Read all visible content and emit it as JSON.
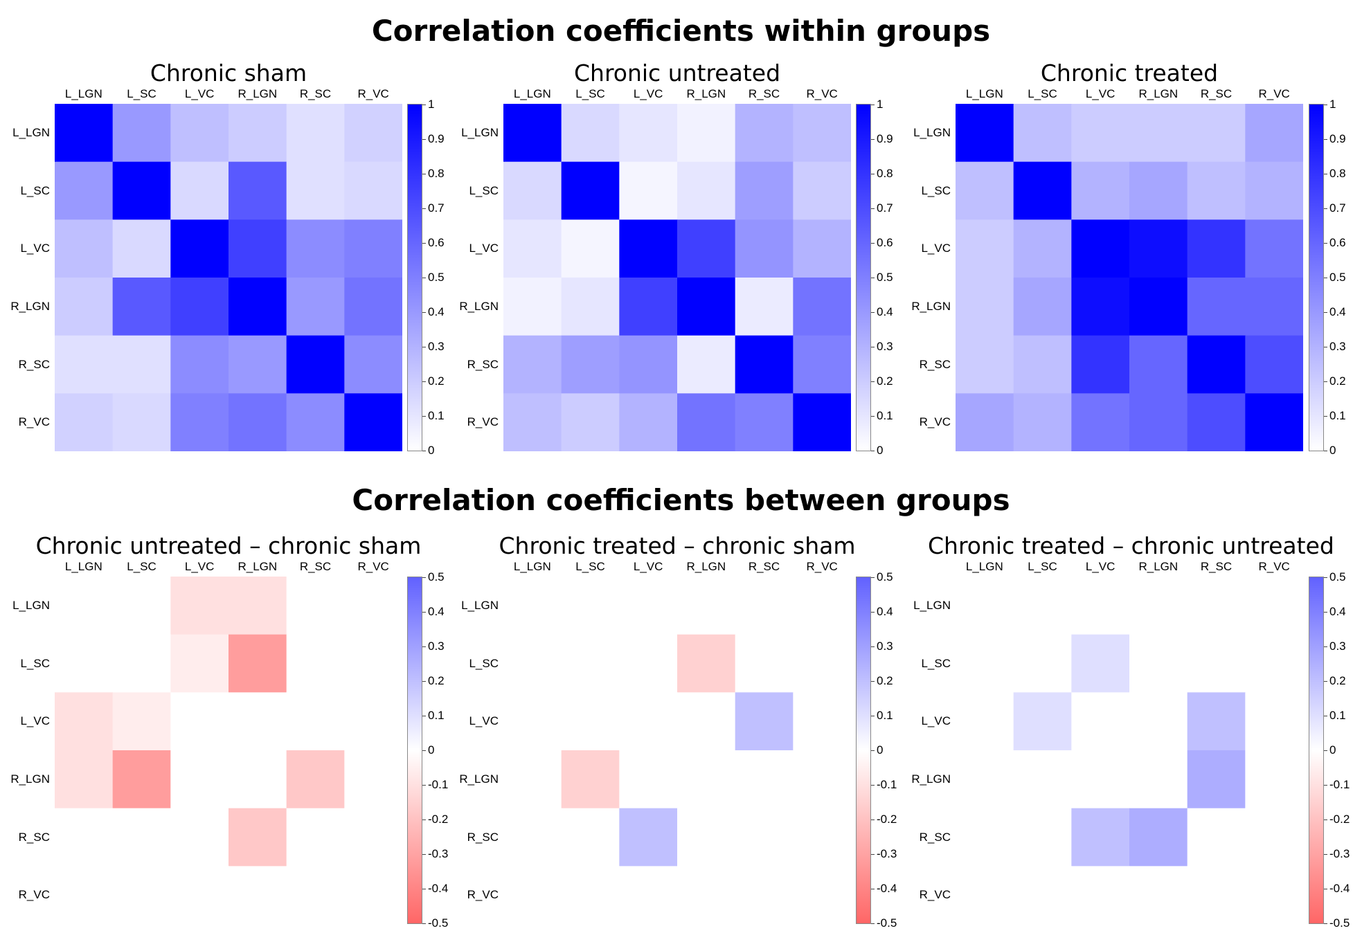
{
  "titles": {
    "within": "Correlation coefficients within groups",
    "between": "Correlation coefficients between groups"
  },
  "colors": {
    "positive": "#0000ff",
    "negative": "#ff4040",
    "neutral": "#ffffff"
  },
  "chart_data": [
    {
      "type": "heatmap",
      "title": "Chronic sham",
      "row_labels": [
        "L_LGN",
        "L_SC",
        "L_VC",
        "R_LGN",
        "R_SC",
        "R_VC"
      ],
      "col_labels": [
        "L_LGN",
        "L_SC",
        "L_VC",
        "R_LGN",
        "R_SC",
        "R_VC"
      ],
      "values": [
        [
          1.0,
          0.4,
          0.25,
          0.2,
          0.12,
          0.18
        ],
        [
          0.4,
          1.0,
          0.15,
          0.65,
          0.12,
          0.15
        ],
        [
          0.25,
          0.15,
          1.0,
          0.75,
          0.45,
          0.5
        ],
        [
          0.2,
          0.65,
          0.75,
          1.0,
          0.4,
          0.55
        ],
        [
          0.12,
          0.12,
          0.45,
          0.4,
          1.0,
          0.45
        ],
        [
          0.18,
          0.15,
          0.5,
          0.55,
          0.45,
          1.0
        ]
      ],
      "colorbar": {
        "vmin": 0,
        "vmax": 1,
        "ticks": [
          "1",
          "0.9",
          "0.8",
          "0.7",
          "0.6",
          "0.5",
          "0.4",
          "0.3",
          "0.2",
          "0.1",
          "0"
        ]
      }
    },
    {
      "type": "heatmap",
      "title": "Chronic untreated",
      "row_labels": [
        "L_LGN",
        "L_SC",
        "L_VC",
        "R_LGN",
        "R_SC",
        "R_VC"
      ],
      "col_labels": [
        "L_LGN",
        "L_SC",
        "L_VC",
        "R_LGN",
        "R_SC",
        "R_VC"
      ],
      "values": [
        [
          1.0,
          0.15,
          0.1,
          0.05,
          0.3,
          0.25
        ],
        [
          0.15,
          1.0,
          0.04,
          0.1,
          0.38,
          0.2
        ],
        [
          0.1,
          0.04,
          1.0,
          0.75,
          0.42,
          0.3
        ],
        [
          0.05,
          0.1,
          0.75,
          1.0,
          0.08,
          0.55
        ],
        [
          0.3,
          0.38,
          0.42,
          0.08,
          1.0,
          0.5
        ],
        [
          0.25,
          0.2,
          0.3,
          0.55,
          0.5,
          1.0
        ]
      ],
      "colorbar": {
        "vmin": 0,
        "vmax": 1,
        "ticks": [
          "1",
          "0.9",
          "0.8",
          "0.7",
          "0.6",
          "0.5",
          "0.4",
          "0.3",
          "0.2",
          "0.1",
          "0"
        ]
      }
    },
    {
      "type": "heatmap",
      "title": "Chronic treated",
      "row_labels": [
        "L_LGN",
        "L_SC",
        "L_VC",
        "R_LGN",
        "R_SC",
        "R_VC"
      ],
      "col_labels": [
        "L_LGN",
        "L_SC",
        "L_VC",
        "R_LGN",
        "R_SC",
        "R_VC"
      ],
      "values": [
        [
          1.0,
          0.25,
          0.2,
          0.2,
          0.2,
          0.35
        ],
        [
          0.25,
          1.0,
          0.3,
          0.35,
          0.25,
          0.3
        ],
        [
          0.2,
          0.3,
          1.0,
          0.95,
          0.8,
          0.55
        ],
        [
          0.2,
          0.35,
          0.95,
          1.0,
          0.6,
          0.6
        ],
        [
          0.2,
          0.25,
          0.8,
          0.6,
          1.0,
          0.7
        ],
        [
          0.35,
          0.3,
          0.55,
          0.6,
          0.7,
          1.0
        ]
      ],
      "colorbar": {
        "vmin": 0,
        "vmax": 1,
        "ticks": [
          "1",
          "0.9",
          "0.8",
          "0.7",
          "0.6",
          "0.5",
          "0.4",
          "0.3",
          "0.2",
          "0.1",
          "0"
        ]
      }
    },
    {
      "type": "heatmap",
      "title": "Chronic untreated – chronic sham",
      "row_labels": [
        "L_LGN",
        "L_SC",
        "L_VC",
        "R_LGN",
        "R_SC",
        "R_VC"
      ],
      "col_labels": [
        "L_LGN",
        "L_SC",
        "L_VC",
        "R_LGN",
        "R_SC",
        "R_VC"
      ],
      "values": [
        [
          0,
          0,
          -0.1,
          -0.1,
          0,
          0
        ],
        [
          0,
          0,
          -0.06,
          -0.32,
          0,
          0
        ],
        [
          -0.1,
          -0.06,
          0,
          0,
          0,
          0
        ],
        [
          -0.1,
          -0.32,
          0,
          0,
          -0.18,
          0
        ],
        [
          0,
          0,
          0,
          -0.18,
          0,
          0
        ],
        [
          0,
          0,
          0,
          0,
          0,
          0
        ]
      ],
      "colorbar": {
        "vmin": -0.5,
        "vmax": 0.5,
        "ticks": [
          "0.5",
          "0.4",
          "0.3",
          "0.2",
          "0.1",
          "0",
          "-0.1",
          "-0.2",
          "-0.3",
          "-0.4",
          "-0.5"
        ]
      }
    },
    {
      "type": "heatmap",
      "title": "Chronic treated – chronic sham",
      "row_labels": [
        "L_LGN",
        "L_SC",
        "L_VC",
        "R_LGN",
        "R_SC",
        "R_VC"
      ],
      "col_labels": [
        "L_LGN",
        "L_SC",
        "L_VC",
        "R_LGN",
        "R_SC",
        "R_VC"
      ],
      "values": [
        [
          0,
          0,
          0,
          0,
          0,
          0
        ],
        [
          0,
          0,
          0,
          -0.15,
          0,
          0
        ],
        [
          0,
          0,
          0,
          0,
          0.2,
          0
        ],
        [
          0,
          -0.15,
          0,
          0,
          0,
          0
        ],
        [
          0,
          0,
          0.2,
          0,
          0,
          0
        ],
        [
          0,
          0,
          0,
          0,
          0,
          0
        ]
      ],
      "colorbar": {
        "vmin": -0.5,
        "vmax": 0.5,
        "ticks": [
          "0.5",
          "0.4",
          "0.3",
          "0.2",
          "0.1",
          "0",
          "-0.1",
          "-0.2",
          "-0.3",
          "-0.4",
          "-0.5"
        ]
      }
    },
    {
      "type": "heatmap",
      "title": "Chronic treated – chronic untreated",
      "row_labels": [
        "L_LGN",
        "L_SC",
        "L_VC",
        "R_LGN",
        "R_SC",
        "R_VC"
      ],
      "col_labels": [
        "L_LGN",
        "L_SC",
        "L_VC",
        "R_LGN",
        "R_SC",
        "R_VC"
      ],
      "values": [
        [
          0,
          0,
          0,
          0,
          0,
          0
        ],
        [
          0,
          0,
          0.1,
          0,
          0,
          0
        ],
        [
          0,
          0.1,
          0,
          0,
          0.2,
          0
        ],
        [
          0,
          0,
          0,
          0,
          0.26,
          0
        ],
        [
          0,
          0,
          0.2,
          0.26,
          0,
          0
        ],
        [
          0,
          0,
          0,
          0,
          0,
          0
        ]
      ],
      "colorbar": {
        "vmin": -0.5,
        "vmax": 0.5,
        "ticks": [
          "0.5",
          "0.4",
          "0.3",
          "0.2",
          "0.1",
          "0",
          "-0.1",
          "-0.2",
          "-0.3",
          "-0.4",
          "-0.5"
        ]
      }
    }
  ]
}
